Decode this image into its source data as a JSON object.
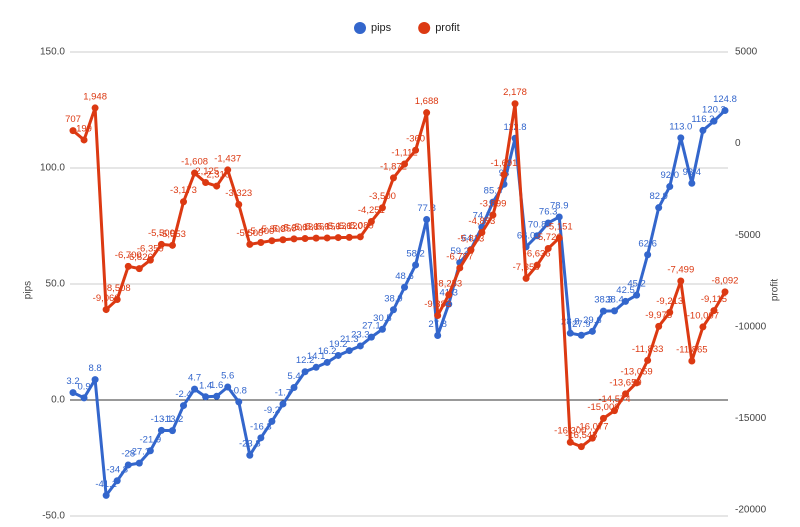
{
  "chart_data": {
    "type": "line",
    "legend": "top",
    "x": [
      0,
      1,
      2,
      3,
      4,
      5,
      6,
      7,
      8,
      9,
      10,
      11,
      12,
      13,
      14,
      15,
      16,
      17,
      18,
      19,
      20,
      21,
      22,
      23,
      24,
      25,
      26,
      27,
      28,
      29,
      30,
      31,
      32,
      33,
      34,
      35,
      36,
      37,
      38,
      39,
      40,
      41,
      42,
      43,
      44,
      45,
      46,
      47,
      48,
      49,
      50,
      51,
      52,
      53,
      54,
      55,
      56,
      57,
      58,
      59
    ],
    "xlim": [
      0,
      59
    ],
    "ylabel": "pips",
    "y2label": "profit",
    "ylim": [
      -50,
      150
    ],
    "yticks": [
      {
        "value": -50,
        "label": "-50.0"
      },
      {
        "value": 0,
        "label": "0.0"
      },
      {
        "value": 50,
        "label": "50.0"
      },
      {
        "value": 100,
        "label": "100.0"
      },
      {
        "value": 150,
        "label": "150.0"
      }
    ],
    "y2lim": [
      -20000,
      5000
    ],
    "y2ticks": [
      -20000,
      -15000,
      -10000,
      -5000,
      0,
      5000
    ],
    "series": [
      {
        "name": "pips",
        "color": "#3366cc",
        "axis": "y",
        "values": [
          3.2,
          0.9,
          8.8,
          -41.1,
          -34.8,
          -28,
          -27.2,
          -21.9,
          -13.1,
          -13.2,
          -2.4,
          4.7,
          1.4,
          1.6,
          5.6,
          -0.8,
          -23.8,
          -16.3,
          -9.2,
          -1.7,
          5.4,
          12.2,
          14.1,
          16.2,
          19.2,
          21.3,
          23.3,
          27.1,
          30.5,
          38.9,
          48.6,
          58.2,
          77.8,
          27.8,
          41.3,
          59.2,
          64.8,
          74.5,
          85.3,
          93,
          112.8,
          66,
          70.8,
          76.3,
          78.9,
          28.8,
          27.9,
          29.6,
          38.3,
          38.4,
          42.5,
          45.2,
          62.6,
          82.9,
          92,
          113,
          93.4,
          116.2,
          120.2,
          124.8
        ],
        "value_labels": [
          "3.2",
          "0.9",
          "8.8",
          "-41.1",
          "-34.8",
          "-28",
          "-27.2",
          "-21.9",
          "-13.1",
          "-13.2",
          "-2.4",
          "4.7",
          "1.4",
          "1.6",
          "5.6",
          "-0.8",
          "-23.8",
          "-16.3",
          "-9.2",
          "-1.7",
          "5.4",
          "12.2",
          "14.1",
          "16.2",
          "19.2",
          "21.3",
          "23.3",
          "27.1",
          "30.5",
          "38.9",
          "48.6",
          "58.2",
          "77.8",
          "27.8",
          "41.3",
          "59.2",
          "64.8",
          "74.5",
          "85.3",
          "93",
          "112.8",
          "66.0",
          "70.8",
          "76.3",
          "78.9",
          "28.8",
          "27.9",
          "29.6",
          "38.3",
          "38.4",
          "42.5",
          "45.2",
          "62.6",
          "82.9",
          "92.0",
          "113.0",
          "93.4",
          "116.2",
          "120.2",
          "124.8"
        ]
      },
      {
        "name": "profit",
        "color": "#dc3912",
        "axis": "y2",
        "values": [
          707,
          199,
          1948,
          -9060,
          -8508,
          -6700,
          -6826,
          -6359,
          -5500,
          -5553,
          -3173,
          -1608,
          -2125,
          -2318,
          -1437,
          -3323,
          -5500,
          -5400,
          -5300,
          -5250,
          -5200,
          -5180,
          -5160,
          -5150,
          -5130,
          -5120,
          -5089,
          -4251,
          -3500,
          -1872,
          -1112,
          -360,
          1688,
          -9383,
          -8253,
          -6787,
          -5813,
          -4853,
          -3899,
          -1691,
          2178,
          -7358,
          -6636,
          -5726,
          -5151,
          -16300,
          -16543,
          -16077,
          -15000,
          -14574,
          -13659,
          -13059,
          -11833,
          -9975,
          -9213,
          -7499,
          -11865,
          -10007,
          -9115,
          -8092
        ],
        "value_labels": [
          "707",
          "199",
          "1,948",
          "-9,060",
          "-8,508",
          "-6,700",
          "-6,826",
          "-6,359",
          "-5,500",
          "-5,553",
          "-3,173",
          "-1,608",
          "-2,125",
          "-2,318",
          "-1,437",
          "-3,323",
          "-5,500",
          "-5,400",
          "-5,300",
          "-5,250",
          "-5,200",
          "-5,180",
          "-5,160",
          "-5,150",
          "-5,130",
          "-5,120",
          "-5,089",
          "-4,251",
          "-3,500",
          "-1,872",
          "-1,112",
          "-360",
          "1,688",
          "-9,383",
          "-8,253",
          "-6,787",
          "-5,813",
          "-4,853",
          "-3,899",
          "-1,691",
          "2,178",
          "-7,358",
          "-6,636",
          "-5,726",
          "-5,151",
          "-16,300",
          "-16,543",
          "-16,077",
          "-15,000",
          "-14,574",
          "-13,659",
          "-13,059",
          "-11,833",
          "-9,975",
          "-9,213",
          "-7,499",
          "-11,865",
          "-10,007",
          "-9,115",
          "-8,092"
        ]
      }
    ]
  }
}
